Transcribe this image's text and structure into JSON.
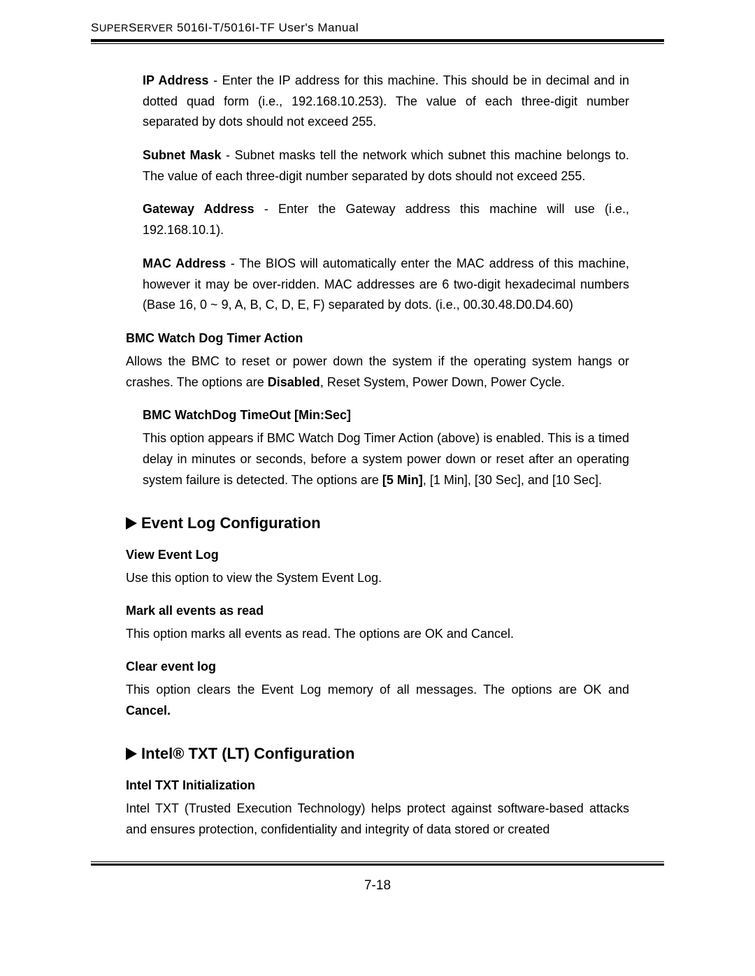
{
  "header": {
    "title_prefix": "S",
    "title_small1": "UPER",
    "title_mid": "S",
    "title_small2": "ERVER",
    "title_rest": " 5016I-T/5016I-TF User's Manual"
  },
  "ip_address": {
    "label": "IP Address",
    "text": " - Enter the IP address for this machine. This should be in decimal and in dotted quad form (i.e., 192.168.10.253). The value of each three-digit number separated by dots should not exceed 255."
  },
  "subnet_mask": {
    "label": "Subnet Mask",
    "text": " - Subnet masks tell the network which subnet this machine belongs to. The value of each three-digit number separated by dots should not exceed 255."
  },
  "gateway": {
    "label": "Gateway Address",
    "text": " - Enter the Gateway address this machine will use (i.e., 192.168.10.1)."
  },
  "mac": {
    "label": "MAC Address",
    "text": " - The BIOS will automatically enter the MAC address of this machine, however it may be over-ridden. MAC addresses are 6 two-digit hexadecimal numbers (Base 16, 0 ~ 9, A, B, C, D, E, F) separated by dots.  (i.e., 00.30.48.D0.D4.60)"
  },
  "bmc_watchdog": {
    "heading": "BMC Watch Dog Timer Action",
    "text_pre": "Allows the BMC to reset or power down the system if the operating system hangs or crashes. The options are ",
    "bold": "Disabled",
    "text_post": ", Reset System, Power Down, Power Cycle."
  },
  "bmc_timeout": {
    "heading": "BMC WatchDog TimeOut [Min:Sec]",
    "text_pre": "This option appears if BMC Watch Dog Timer Action (above) is enabled. This is a timed delay in minutes or seconds, before a system power down or reset after an operating system failure is detected. The options are ",
    "bold": "[5 Min]",
    "text_post": ", [1 Min], [30 Sec], and [10 Sec]."
  },
  "event_log_section": {
    "heading": "Event Log Configuration"
  },
  "view_event_log": {
    "heading": "View Event Log",
    "text": "Use this option to view the System Event Log."
  },
  "mark_events": {
    "heading": "Mark all events as read",
    "text": "This option marks all events as read.  The options are OK and Cancel."
  },
  "clear_event_log": {
    "heading": "Clear event log",
    "text_pre": "This option clears the Event Log memory of all messages.  The options are OK and ",
    "bold": "Cancel."
  },
  "intel_txt_section": {
    "heading": "Intel® TXT (LT) Configuration"
  },
  "intel_txt_init": {
    "heading": "Intel TXT Initialization",
    "text": "Intel TXT (Trusted Execution Technology) helps protect against software-based attacks and ensures protection, confidentiality and integrity of data stored or created"
  },
  "page_number": "7-18",
  "styling": {
    "body_font_size": 18,
    "heading_font_size": 22,
    "text_color": "#000000",
    "background_color": "#ffffff",
    "rule_color": "#000000"
  }
}
